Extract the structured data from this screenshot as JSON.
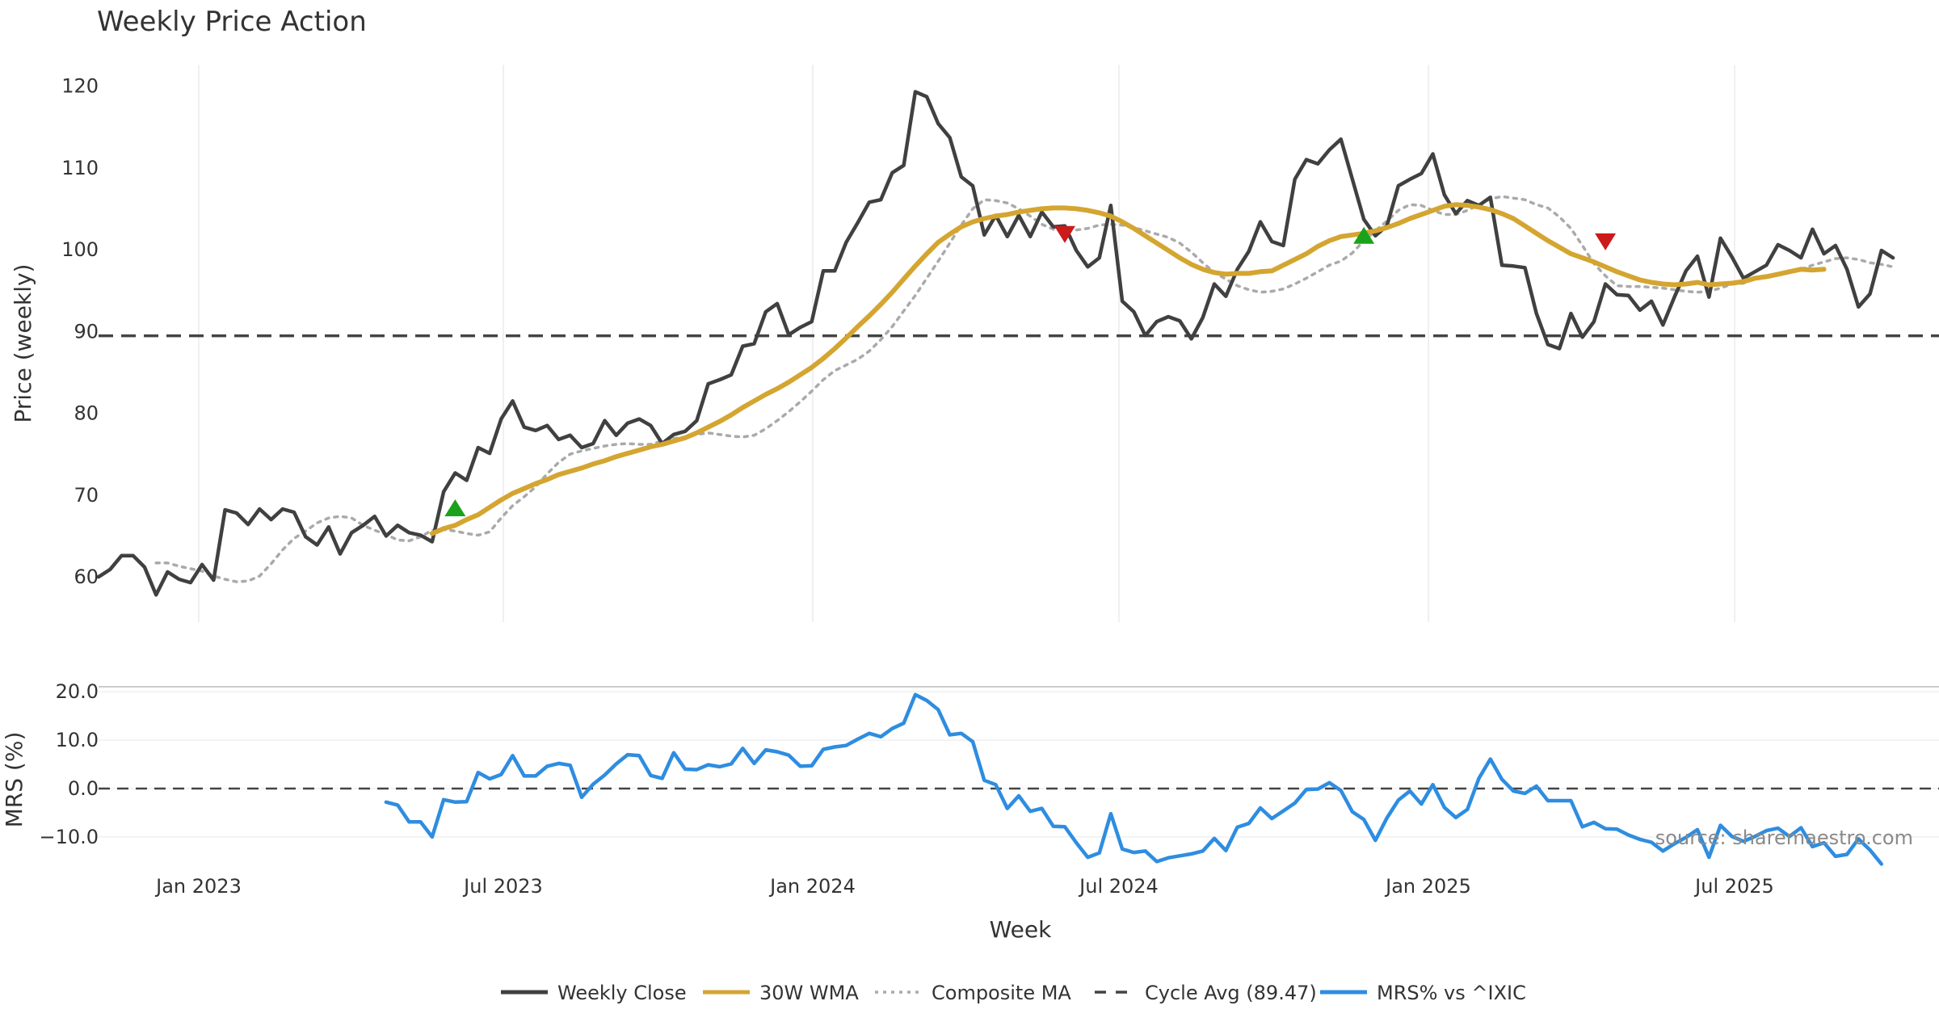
{
  "chart_data": {
    "type": "line",
    "title": "Weekly Price Action",
    "xlabel": "Week",
    "source": "source: sharemaestro.com",
    "x_ticks": [
      "Jan 2023",
      "Jul 2023",
      "Jan 2024",
      "Jul 2024",
      "Jan 2025",
      "Jul 2025"
    ],
    "price_panel": {
      "ylabel": "Price (weekly)",
      "ylim": [
        54,
        123
      ],
      "y_ticks": [
        "60",
        "70",
        "80",
        "90",
        "100",
        "110",
        "120"
      ],
      "y_tick_values": [
        60,
        70,
        80,
        90,
        100,
        110,
        120
      ],
      "x_range_weeks": [
        0,
        160
      ],
      "weekly_close": [
        60.0,
        60.9,
        62.6,
        62.6,
        61.2,
        57.8,
        60.6,
        59.7,
        59.3,
        61.5,
        59.6,
        68.2,
        67.8,
        66.4,
        68.3,
        67.0,
        68.3,
        67.9,
        64.9,
        63.9,
        66.1,
        62.8,
        65.4,
        66.3,
        67.4,
        65.0,
        66.3,
        65.4,
        65.1,
        64.3,
        70.4,
        72.7,
        71.8,
        75.8,
        75.1,
        79.3,
        81.5,
        78.3,
        77.9,
        78.5,
        76.8,
        77.3,
        75.8,
        76.3,
        79.1,
        77.3,
        78.8,
        79.3,
        78.5,
        76.3,
        77.4,
        77.8,
        79.1,
        83.6,
        84.1,
        84.7,
        88.2,
        88.5,
        92.4,
        93.4,
        89.6,
        90.5,
        91.2,
        97.4,
        97.4,
        100.9,
        103.3,
        105.8,
        106.1,
        109.4,
        110.3,
        119.3,
        118.7,
        115.4,
        113.7,
        108.9,
        107.8,
        101.8,
        104.2,
        101.6,
        104.2,
        101.6,
        104.6,
        102.8,
        102.9,
        99.9,
        97.9,
        99.0,
        105.4,
        93.7,
        92.4,
        89.5,
        91.2,
        91.8,
        91.3,
        89.1,
        91.7,
        95.8,
        94.3,
        97.6,
        99.8,
        103.4,
        101.0,
        100.5,
        108.6,
        111.0,
        110.5,
        112.2,
        113.5,
        108.6,
        103.7,
        101.7,
        102.9,
        107.8,
        108.6,
        109.3,
        111.7,
        106.7,
        104.4,
        106.0,
        105.4,
        106.4,
        98.1,
        98.0,
        97.8,
        92.2,
        88.4,
        87.9,
        92.2,
        89.3,
        91.2,
        95.8,
        94.5,
        94.4,
        92.6,
        93.7,
        90.8,
        94.2,
        97.4,
        99.2,
        94.2,
        101.4,
        99.1,
        96.5,
        97.3,
        98.1,
        100.6,
        99.9,
        99.0,
        102.5,
        99.5,
        100.5,
        97.6,
        93.0,
        94.6,
        99.9,
        99.0
      ],
      "wma_30": [
        65.3,
        65.9,
        66.3,
        67.0,
        67.6,
        68.5,
        69.4,
        70.2,
        70.8,
        71.4,
        71.9,
        72.5,
        72.9,
        73.3,
        73.8,
        74.2,
        74.7,
        75.1,
        75.5,
        75.9,
        76.2,
        76.6,
        77.0,
        77.6,
        78.3,
        79.0,
        79.8,
        80.7,
        81.5,
        82.3,
        83.0,
        83.8,
        84.7,
        85.6,
        86.7,
        87.9,
        89.2,
        90.6,
        91.9,
        93.3,
        94.8,
        96.4,
        98.0,
        99.5,
        100.9,
        101.9,
        102.8,
        103.4,
        103.8,
        104.1,
        104.3,
        104.6,
        104.8,
        105.0,
        105.1,
        105.1,
        105.0,
        104.8,
        104.5,
        104.1,
        103.4,
        102.6,
        101.7,
        100.8,
        99.9,
        99.0,
        98.2,
        97.6,
        97.2,
        97.0,
        97.1,
        97.1,
        97.3,
        97.4,
        98.1,
        98.8,
        99.5,
        100.4,
        101.1,
        101.6,
        101.8,
        102.0,
        102.3,
        102.7,
        103.2,
        103.8,
        104.3,
        104.8,
        105.3,
        105.5,
        105.4,
        105.2,
        104.9,
        104.4,
        103.8,
        102.9,
        102.0,
        101.1,
        100.3,
        99.5,
        99.0,
        98.5,
        97.9,
        97.3,
        96.8,
        96.3,
        96.0,
        95.8,
        95.7,
        95.8,
        96.0,
        95.7,
        95.8,
        95.9,
        96.1,
        96.5,
        96.7,
        97.0,
        97.3,
        97.6,
        97.5,
        97.6
      ],
      "wma_start_week": 29,
      "composite_ma": [
        61.7,
        61.7,
        61.3,
        61.0,
        60.7,
        60.1,
        59.7,
        59.4,
        59.5,
        60.1,
        61.6,
        63.3,
        64.7,
        65.6,
        66.6,
        67.2,
        67.4,
        67.2,
        66.3,
        65.7,
        65.2,
        64.5,
        64.4,
        64.9,
        65.7,
        65.8,
        65.6,
        65.3,
        65.1,
        65.5,
        67.2,
        68.7,
        69.8,
        71.0,
        72.6,
        74.0,
        75.0,
        75.4,
        75.7,
        76.0,
        76.2,
        76.3,
        76.2,
        76.2,
        76.6,
        76.9,
        77.1,
        77.4,
        77.6,
        77.4,
        77.2,
        77.1,
        77.3,
        78.1,
        79.1,
        80.2,
        81.4,
        82.7,
        84.1,
        85.2,
        85.9,
        86.6,
        87.6,
        89.0,
        90.6,
        92.5,
        94.4,
        96.5,
        98.6,
        100.8,
        103.0,
        105.0,
        106.1,
        106.0,
        105.7,
        105.0,
        104.1,
        103.1,
        102.5,
        102.3,
        102.4,
        102.6,
        103.0,
        103.1,
        103.0,
        102.7,
        102.3,
        101.9,
        101.5,
        100.8,
        99.7,
        98.4,
        97.2,
        96.4,
        95.6,
        95.1,
        94.8,
        94.9,
        95.2,
        95.8,
        96.5,
        97.3,
        98.1,
        98.6,
        99.6,
        101.1,
        102.3,
        103.5,
        104.8,
        105.5,
        105.4,
        104.8,
        104.3,
        104.3,
        104.8,
        105.5,
        106.2,
        106.5,
        106.3,
        106.1,
        105.5,
        105.1,
        104.0,
        102.6,
        100.5,
        98.3,
        96.8,
        95.6,
        95.5,
        95.5,
        95.4,
        95.3,
        95.1,
        94.9,
        94.8,
        94.9,
        95.3,
        95.8,
        95.9,
        96.4,
        96.6,
        96.9,
        97.2,
        97.6,
        98.1,
        98.5,
        98.9,
        99.0,
        98.8,
        98.4,
        98.2,
        97.9
      ],
      "composite_start_week": 5,
      "cycle_avg": 89.47,
      "buy_signals": [
        {
          "week": 31,
          "price": 68.3
        },
        {
          "week": 110,
          "price": 101.6
        }
      ],
      "sell_signals": [
        {
          "week": 84,
          "price": 102.0
        },
        {
          "week": 131,
          "price": 101.1
        }
      ]
    },
    "mrs_panel": {
      "ylabel": "MRS (%)",
      "ylim": [
        -17,
        22
      ],
      "y_ticks": [
        "20.0",
        "10.0",
        "0.0",
        "−10.0"
      ],
      "y_tick_values": [
        20,
        10,
        0,
        -10
      ],
      "start_week": 25,
      "values": [
        -2.8,
        -3.4,
        -6.9,
        -6.9,
        -10.0,
        -2.3,
        -2.8,
        -2.7,
        3.3,
        2.0,
        2.9,
        6.8,
        2.6,
        2.6,
        4.6,
        5.2,
        4.8,
        -1.8,
        0.9,
        2.8,
        5.1,
        7.0,
        6.8,
        2.7,
        2.1,
        7.4,
        4.0,
        3.9,
        4.9,
        4.5,
        5.1,
        8.3,
        5.2,
        8.0,
        7.6,
        6.9,
        4.6,
        4.7,
        8.1,
        8.6,
        8.9,
        10.2,
        11.4,
        10.7,
        12.4,
        13.5,
        19.4,
        18.2,
        16.3,
        11.1,
        11.4,
        9.7,
        1.7,
        0.8,
        -4.1,
        -1.5,
        -4.7,
        -4.1,
        -7.8,
        -7.9,
        -11.2,
        -14.2,
        -13.3,
        -5.2,
        -12.5,
        -13.2,
        -12.9,
        -15.1,
        -14.3,
        -13.9,
        -13.5,
        -12.9,
        -10.3,
        -12.8,
        -8.0,
        -7.2,
        -4.0,
        -6.2,
        -4.6,
        -3.0,
        -0.2,
        -0.1,
        1.2,
        -0.4,
        -4.8,
        -6.4,
        -10.7,
        -6.1,
        -2.4,
        -0.5,
        -3.2,
        0.8,
        -3.9,
        -6.0,
        -4.3,
        2.1,
        6.1,
        1.9,
        -0.5,
        -1.0,
        0.5,
        -2.5,
        -2.5,
        -2.5,
        -7.9,
        -7.0,
        -8.3,
        -8.4,
        -9.6,
        -10.5,
        -11.1,
        -12.9,
        -11.4,
        -10.1,
        -8.5,
        -14.2,
        -7.6,
        -9.9,
        -10.9,
        -9.9,
        -8.7,
        -8.2,
        -9.9,
        -8.1,
        -12.0,
        -11.2,
        -14.0,
        -13.6,
        -10.4,
        -12.7,
        -15.6
      ]
    },
    "legend": [
      {
        "label": "Weekly Close",
        "color": "#404040",
        "style": "solid"
      },
      {
        "label": "30W WMA",
        "color": "#d4a530",
        "style": "solid"
      },
      {
        "label": "Composite MA",
        "color": "#aaaaaa",
        "style": "dotted"
      },
      {
        "label": "Cycle Avg (89.47)",
        "color": "#444444",
        "style": "dashed"
      },
      {
        "label": "MRS% vs ^IXIC",
        "color": "#2e8de0",
        "style": "solid"
      }
    ],
    "colors": {
      "close": "#404040",
      "wma": "#d4a530",
      "composite": "#aaaaaa",
      "cycle": "#444444",
      "mrs": "#2e8de0",
      "buy": "#1aa31a",
      "sell": "#cc1a1a",
      "grid": "#ebebeb"
    }
  }
}
